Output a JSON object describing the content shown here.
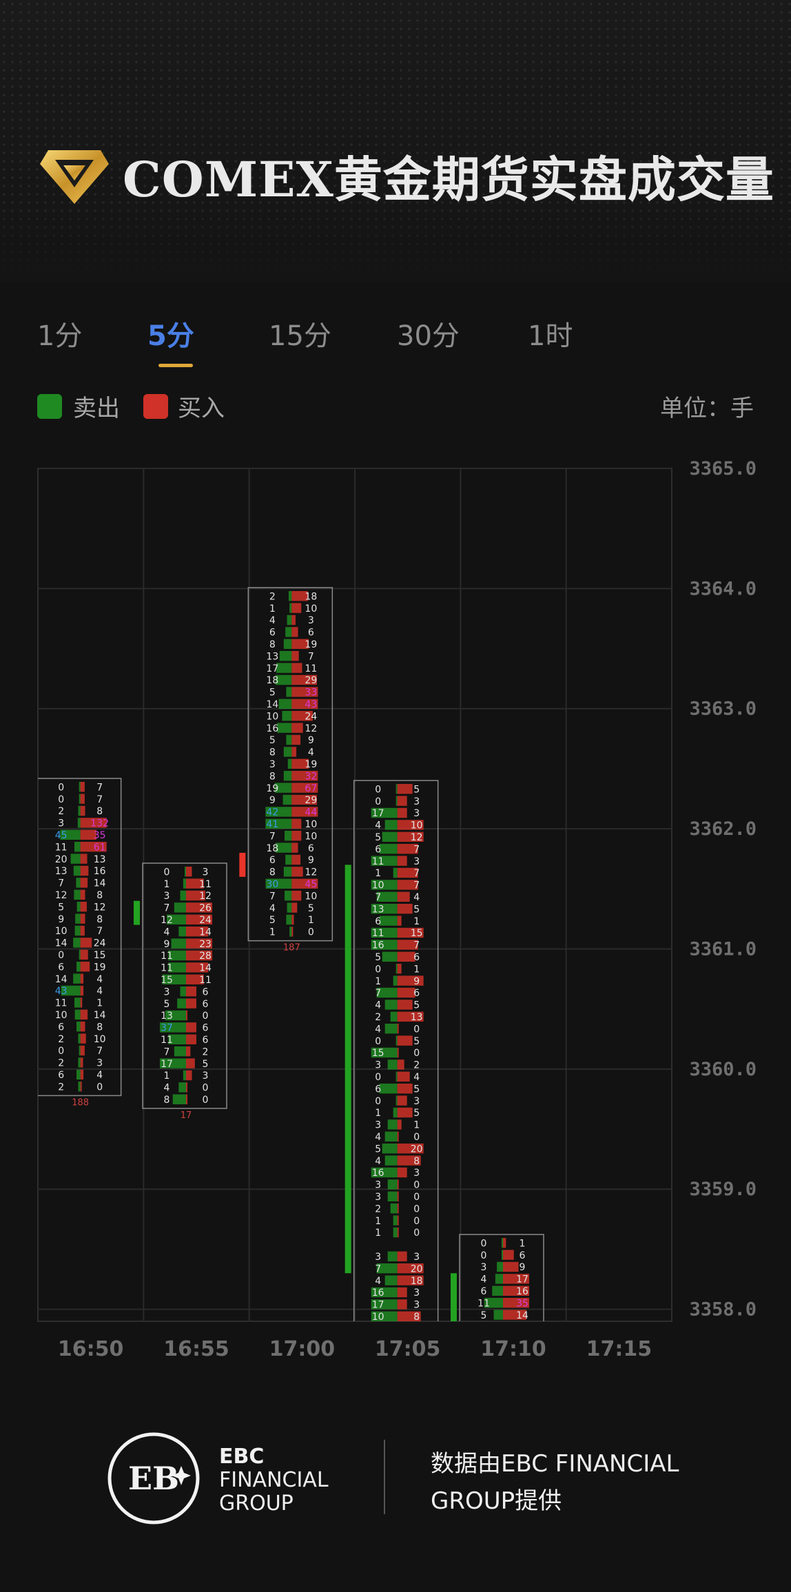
{
  "header": {
    "title": "COMEX黄金期货实盘成交量"
  },
  "tabs": [
    {
      "label": "1分",
      "active": false
    },
    {
      "label": "5分",
      "active": true
    },
    {
      "label": "15分",
      "active": false
    },
    {
      "label": "30分",
      "active": false
    },
    {
      "label": "1时",
      "active": false
    }
  ],
  "legend": {
    "sell_label": "卖出",
    "sell_color": "#1f8a22",
    "buy_label": "买入",
    "buy_color": "#d03128",
    "unit": "单位：手"
  },
  "chart_data": {
    "type": "footprint",
    "y_ticks": [
      "3365.0",
      "3364.0",
      "3363.0",
      "3362.0",
      "3361.0",
      "3360.0",
      "3359.0",
      "3358.0"
    ],
    "ylim": [
      3357.9,
      3365.0
    ],
    "x_ticks": [
      "16:50",
      "16:55",
      "17:00",
      "17:05",
      "17:10",
      "17:15"
    ],
    "colors": {
      "sell": "#1f8a22",
      "buy": "#d03128",
      "sell_text": "#3a9be6",
      "buy_text": "#d83ad8"
    },
    "bars": [
      {
        "time": "16:50",
        "delta": "188",
        "direction": "buy",
        "open": 3360.3,
        "close": 3361.3,
        "rows": [
          [
            0,
            7
          ],
          [
            0,
            7
          ],
          [
            2,
            8
          ],
          [
            3,
            132
          ],
          [
            45,
            35
          ],
          [
            11,
            61
          ],
          [
            20,
            13
          ],
          [
            13,
            16
          ],
          [
            7,
            14
          ],
          [
            12,
            8
          ],
          [
            5,
            12
          ],
          [
            9,
            8
          ],
          [
            10,
            7
          ],
          [
            14,
            24
          ],
          [
            0,
            15
          ],
          [
            6,
            19
          ],
          [
            14,
            4
          ],
          [
            43,
            4
          ],
          [
            11,
            1
          ],
          [
            10,
            14
          ],
          [
            6,
            8
          ],
          [
            2,
            10
          ],
          [
            0,
            7
          ],
          [
            2,
            3
          ],
          [
            6,
            4
          ],
          [
            2,
            0
          ]
        ]
      },
      {
        "time": "16:55",
        "delta": "17",
        "direction": "sell",
        "open": 3361.4,
        "close": 3361.2,
        "rows": [
          [
            0,
            3
          ],
          [
            1,
            11
          ],
          [
            3,
            12
          ],
          [
            7,
            26
          ],
          [
            12,
            24
          ],
          [
            4,
            14
          ],
          [
            9,
            23
          ],
          [
            11,
            28
          ],
          [
            11,
            14
          ],
          [
            15,
            11
          ],
          [
            3,
            6
          ],
          [
            5,
            6
          ],
          [
            13,
            0
          ],
          [
            37,
            6
          ],
          [
            11,
            6
          ],
          [
            7,
            2
          ],
          [
            17,
            5
          ],
          [
            1,
            3
          ],
          [
            4,
            0
          ],
          [
            8,
            0
          ]
        ]
      },
      {
        "time": "17:00",
        "delta": "187",
        "direction": "buy",
        "open": 3361.6,
        "close": 3361.8,
        "rows": [
          [
            2,
            18
          ],
          [
            1,
            10
          ],
          [
            4,
            3
          ],
          [
            6,
            6
          ],
          [
            8,
            19
          ],
          [
            13,
            7
          ],
          [
            17,
            11
          ],
          [
            18,
            29
          ],
          [
            5,
            33
          ],
          [
            14,
            43
          ],
          [
            10,
            24
          ],
          [
            16,
            12
          ],
          [
            5,
            9
          ],
          [
            8,
            4
          ],
          [
            3,
            19
          ],
          [
            8,
            32
          ],
          [
            19,
            67
          ],
          [
            9,
            29
          ],
          [
            42,
            44
          ],
          [
            41,
            10
          ],
          [
            7,
            10
          ],
          [
            18,
            6
          ],
          [
            6,
            9
          ],
          [
            8,
            12
          ],
          [
            30,
            45
          ],
          [
            7,
            10
          ],
          [
            4,
            5
          ],
          [
            5,
            1
          ],
          [
            1,
            0
          ]
        ]
      },
      {
        "time": "17:05",
        "delta": "",
        "direction": "sell",
        "open": 3361.7,
        "close": 3358.3,
        "rows": [
          [
            0,
            5
          ],
          [
            0,
            3
          ],
          [
            17,
            3
          ],
          [
            4,
            10
          ],
          [
            5,
            12
          ],
          [
            6,
            7
          ],
          [
            11,
            3
          ],
          [
            1,
            7
          ],
          [
            10,
            7
          ],
          [
            7,
            4
          ],
          [
            13,
            5
          ],
          [
            6,
            1
          ],
          [
            11,
            15
          ],
          [
            16,
            7
          ],
          [
            5,
            6
          ],
          [
            0,
            1
          ],
          [
            1,
            9
          ],
          [
            7,
            6
          ],
          [
            4,
            5
          ],
          [
            2,
            13
          ],
          [
            4,
            0
          ],
          [
            0,
            5
          ],
          [
            15,
            0
          ],
          [
            3,
            2
          ],
          [
            0,
            4
          ],
          [
            6,
            5
          ],
          [
            0,
            3
          ],
          [
            1,
            5
          ],
          [
            3,
            1
          ],
          [
            4,
            0
          ],
          [
            5,
            20
          ],
          [
            4,
            8
          ],
          [
            16,
            3
          ],
          [
            3,
            0
          ],
          [
            3,
            0
          ],
          [
            2,
            0
          ],
          [
            1,
            0
          ],
          [
            1,
            0
          ],
          [
            null,
            null
          ],
          [
            3,
            3
          ],
          [
            7,
            20
          ],
          [
            4,
            18
          ],
          [
            16,
            3
          ],
          [
            17,
            3
          ],
          [
            10,
            8
          ]
        ]
      },
      {
        "time": "17:10",
        "delta": "",
        "direction": "sell",
        "open": 3358.3,
        "close": 3357.9,
        "rows": [
          [
            0,
            1
          ],
          [
            0,
            6
          ],
          [
            3,
            9
          ],
          [
            4,
            17
          ],
          [
            6,
            16
          ],
          [
            11,
            35
          ],
          [
            5,
            14
          ]
        ]
      }
    ]
  },
  "footer": {
    "brand_line1": "EBC",
    "brand_line2": "FINANCIAL",
    "brand_line3": "GROUP",
    "provided_by": "数据由EBC FINANCIAL GROUP提供"
  }
}
